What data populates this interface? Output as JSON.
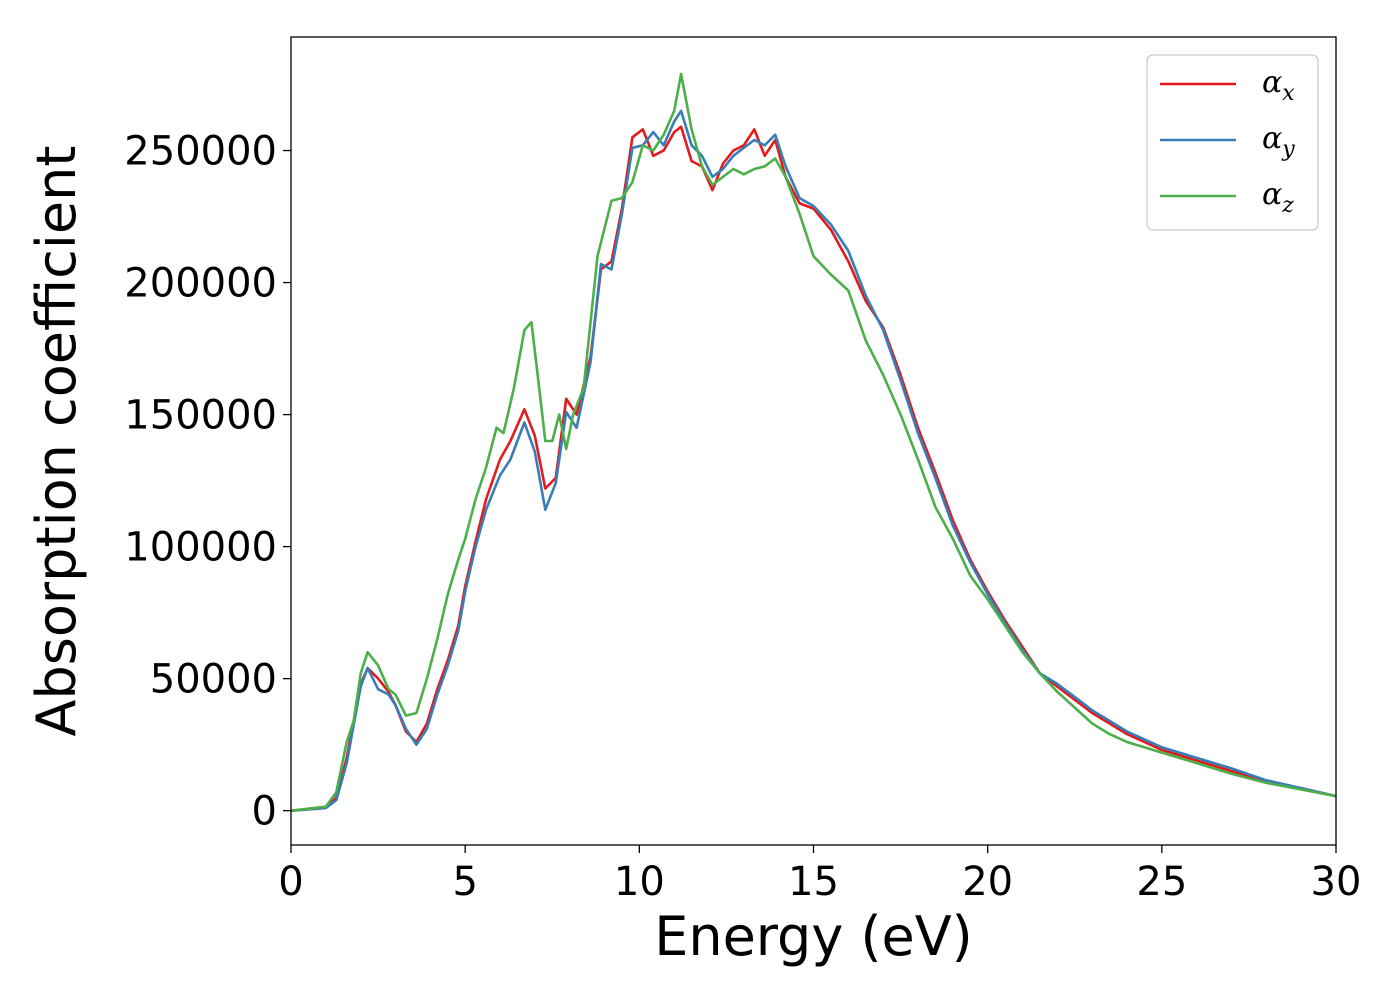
{
  "chart_data": {
    "type": "line",
    "xlabel": "Energy (eV)",
    "ylabel": "Absorption coefficient",
    "xlim": [
      0,
      30
    ],
    "ylim": [
      -13000,
      293000
    ],
    "xticks": [
      0,
      5,
      10,
      15,
      20,
      25,
      30
    ],
    "xtick_labels": [
      "0",
      "5",
      "10",
      "15",
      "20",
      "25",
      "30"
    ],
    "yticks": [
      0,
      50000,
      100000,
      150000,
      200000,
      250000
    ],
    "ytick_labels": [
      "0",
      "50000",
      "100000",
      "150000",
      "200000",
      "250000"
    ],
    "grid": false,
    "legend_position": "top-right",
    "series": [
      {
        "name": "αx",
        "symbol": "α",
        "subscript": "x",
        "color": "#e41a1c",
        "x": [
          0,
          1.0,
          1.3,
          1.6,
          2.0,
          2.2,
          2.5,
          2.8,
          3.0,
          3.3,
          3.6,
          3.9,
          4.2,
          4.5,
          4.8,
          5.0,
          5.3,
          5.6,
          6.0,
          6.3,
          6.7,
          7.0,
          7.3,
          7.6,
          7.9,
          8.2,
          8.6,
          8.9,
          9.2,
          9.5,
          9.8,
          10.1,
          10.4,
          10.7,
          11.0,
          11.2,
          11.5,
          11.8,
          12.1,
          12.4,
          12.7,
          13.0,
          13.3,
          13.6,
          13.9,
          14.2,
          14.6,
          15.0,
          15.5,
          16.0,
          16.5,
          17.0,
          17.5,
          18.0,
          18.5,
          19.0,
          19.5,
          20.0,
          20.5,
          21.0,
          21.5,
          22.0,
          22.5,
          23.0,
          23.5,
          24.0,
          24.5,
          25.0,
          26.0,
          27.0,
          28.0,
          29.0,
          30.0
        ],
        "y": [
          0,
          1000,
          5000,
          20000,
          48000,
          54000,
          50000,
          45000,
          40000,
          30000,
          26000,
          33000,
          46000,
          57000,
          70000,
          85000,
          102000,
          118000,
          133000,
          140000,
          152000,
          142000,
          122000,
          126000,
          156000,
          150000,
          172000,
          205000,
          208000,
          228000,
          255000,
          258000,
          248000,
          250000,
          257000,
          259000,
          246000,
          244000,
          235000,
          245000,
          250000,
          252000,
          258000,
          248000,
          254000,
          240000,
          230000,
          228000,
          220000,
          208000,
          193000,
          183000,
          165000,
          145000,
          128000,
          110000,
          95000,
          83000,
          72000,
          62000,
          52000,
          47000,
          42000,
          37000,
          33000,
          29000,
          26000,
          23000,
          19000,
          15000,
          11000,
          8500,
          5500
        ]
      },
      {
        "name": "αy",
        "symbol": "α",
        "subscript": "y",
        "color": "#377eb8",
        "x": [
          0,
          1.0,
          1.3,
          1.6,
          2.0,
          2.2,
          2.5,
          2.8,
          3.0,
          3.3,
          3.6,
          3.9,
          4.2,
          4.5,
          4.8,
          5.0,
          5.3,
          5.6,
          6.0,
          6.3,
          6.7,
          7.0,
          7.3,
          7.6,
          7.9,
          8.2,
          8.6,
          8.9,
          9.2,
          9.5,
          9.8,
          10.1,
          10.4,
          10.7,
          11.0,
          11.2,
          11.5,
          11.8,
          12.1,
          12.4,
          12.7,
          13.0,
          13.3,
          13.6,
          13.9,
          14.2,
          14.6,
          15.0,
          15.5,
          16.0,
          16.5,
          17.0,
          17.5,
          18.0,
          18.5,
          19.0,
          19.5,
          20.0,
          20.5,
          21.0,
          21.5,
          22.0,
          22.5,
          23.0,
          23.5,
          24.0,
          24.5,
          25.0,
          26.0,
          27.0,
          28.0,
          29.0,
          30.0
        ],
        "y": [
          0,
          1000,
          4000,
          18000,
          47000,
          54000,
          46000,
          44000,
          40000,
          31000,
          25000,
          31000,
          44000,
          55000,
          68000,
          83000,
          100000,
          114000,
          127000,
          133000,
          147000,
          136000,
          114000,
          124000,
          151000,
          145000,
          170000,
          207000,
          205000,
          226000,
          251000,
          252000,
          257000,
          252000,
          261000,
          265000,
          252000,
          248000,
          240000,
          243000,
          248000,
          251000,
          254000,
          252000,
          256000,
          244000,
          232000,
          229000,
          222000,
          212000,
          195000,
          182000,
          163000,
          143000,
          126000,
          108000,
          94000,
          82000,
          71000,
          61000,
          52000,
          48000,
          43000,
          38000,
          34000,
          30000,
          27000,
          24000,
          20000,
          16000,
          11500,
          8500,
          5500
        ]
      },
      {
        "name": "αz",
        "symbol": "α",
        "subscript": "z",
        "color": "#4daf4a",
        "x": [
          0,
          1.0,
          1.3,
          1.6,
          1.8,
          2.0,
          2.2,
          2.5,
          2.8,
          3.0,
          3.3,
          3.6,
          3.9,
          4.2,
          4.5,
          4.8,
          5.0,
          5.3,
          5.6,
          5.9,
          6.1,
          6.4,
          6.7,
          6.9,
          7.1,
          7.3,
          7.5,
          7.7,
          7.9,
          8.1,
          8.4,
          8.8,
          9.2,
          9.5,
          9.8,
          10.1,
          10.4,
          10.7,
          11.0,
          11.2,
          11.5,
          11.8,
          12.1,
          12.4,
          12.7,
          13.0,
          13.3,
          13.6,
          13.9,
          14.2,
          14.6,
          15.0,
          15.5,
          16.0,
          16.5,
          17.0,
          17.5,
          18.0,
          18.5,
          19.0,
          19.5,
          20.0,
          20.5,
          21.0,
          21.5,
          22.0,
          22.5,
          23.0,
          23.5,
          24.0,
          24.5,
          25.0,
          26.0,
          27.0,
          28.0,
          29.0,
          30.0
        ],
        "y": [
          0,
          1500,
          7000,
          26000,
          34000,
          52000,
          60000,
          55000,
          46000,
          44000,
          36000,
          37000,
          50000,
          65000,
          82000,
          95000,
          103000,
          118000,
          130000,
          145000,
          143000,
          160000,
          182000,
          185000,
          163000,
          140000,
          140000,
          150000,
          137000,
          150000,
          160000,
          210000,
          231000,
          232000,
          238000,
          252000,
          250000,
          256000,
          265000,
          279000,
          258000,
          244000,
          237000,
          240000,
          243000,
          241000,
          243000,
          244000,
          247000,
          240000,
          226000,
          210000,
          203000,
          197000,
          178000,
          165000,
          150000,
          133000,
          115000,
          103000,
          89000,
          80000,
          70000,
          60000,
          52000,
          45000,
          39000,
          33000,
          29000,
          26000,
          24000,
          22000,
          18000,
          14000,
          10500,
          8000,
          5500
        ]
      }
    ]
  }
}
